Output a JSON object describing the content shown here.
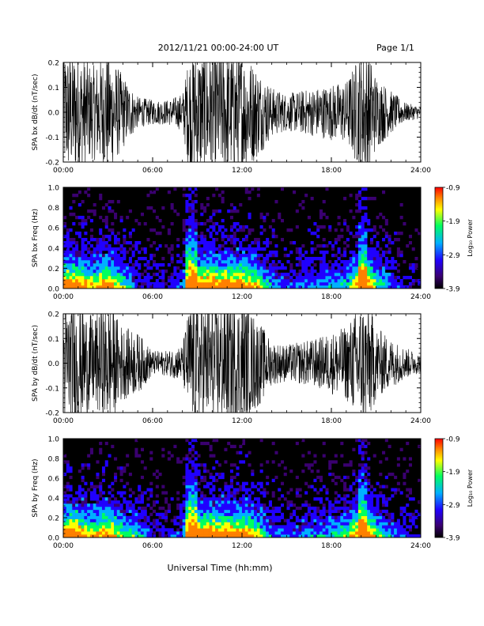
{
  "header": {
    "title": "2012/11/21   00:00-24:00 UT",
    "page": "Page 1/1"
  },
  "xlabel": "Universal Time (hh:mm)",
  "colors": {
    "trace": "#000000",
    "colorbar": [
      "#000000",
      "#3a0070",
      "#2000ff",
      "#00b0ff",
      "#00ff60",
      "#ffff00",
      "#ff8000",
      "#ff0000"
    ]
  },
  "chart_data": [
    {
      "type": "line",
      "ylabel": "SPA bx dB/dt (nT/sec)",
      "ylim": [
        -0.2,
        0.2
      ],
      "yticks": [
        "-0.2",
        "-0.1",
        "0.0",
        "0.1",
        "0.2"
      ],
      "xticks": [
        "00:00",
        "06:00",
        "12:00",
        "18:00",
        "24:00"
      ],
      "xlim_hours": [
        0,
        24
      ],
      "series": [
        {
          "x": [
            0,
            1,
            2,
            3,
            4,
            5,
            6,
            7,
            8,
            8.5,
            9,
            10,
            11,
            12,
            13,
            14,
            15,
            16,
            17,
            18,
            19,
            20,
            20.5,
            21,
            22,
            23,
            24
          ],
          "amplitude": [
            0.2,
            0.2,
            0.15,
            0.2,
            0.12,
            0.05,
            0.04,
            0.04,
            0.06,
            0.2,
            0.2,
            0.2,
            0.2,
            0.2,
            0.15,
            0.08,
            0.06,
            0.07,
            0.08,
            0.09,
            0.1,
            0.2,
            0.2,
            0.12,
            0.07,
            0.03,
            0.02
          ]
        }
      ]
    },
    {
      "type": "heatmap",
      "ylabel": "SPA bx Freq (Hz)",
      "ylim": [
        0.0,
        1.0
      ],
      "yticks": [
        "0.0",
        "0.2",
        "0.4",
        "0.6",
        "0.8",
        "1.0"
      ],
      "xticks": [
        "00:00",
        "06:00",
        "12:00",
        "18:00",
        "24:00"
      ],
      "colorbar": {
        "label": "Log₁₀ Power",
        "ticks": [
          "-0.9",
          "-1.9",
          "-2.9",
          "-3.9"
        ],
        "range": [
          -3.9,
          -0.9
        ]
      }
    },
    {
      "type": "line",
      "ylabel": "SPA by dB/dt (nT/sec)",
      "ylim": [
        -0.2,
        0.2
      ],
      "yticks": [
        "-0.2",
        "-0.1",
        "0.0",
        "0.1",
        "0.2"
      ],
      "xticks": [
        "00:00",
        "06:00",
        "12:00",
        "18:00",
        "24:00"
      ],
      "xlim_hours": [
        0,
        24
      ],
      "series": [
        {
          "x": [
            0,
            1,
            2,
            3,
            4,
            5,
            6,
            7,
            8,
            8.5,
            9,
            10,
            11,
            12,
            13,
            14,
            15,
            16,
            17,
            18,
            19,
            20,
            20.5,
            21,
            22,
            23,
            24
          ],
          "amplitude": [
            0.2,
            0.2,
            0.15,
            0.2,
            0.12,
            0.1,
            0.04,
            0.04,
            0.06,
            0.2,
            0.2,
            0.2,
            0.2,
            0.2,
            0.15,
            0.07,
            0.06,
            0.07,
            0.08,
            0.1,
            0.12,
            0.2,
            0.2,
            0.12,
            0.08,
            0.05,
            0.03
          ]
        }
      ]
    },
    {
      "type": "heatmap",
      "ylabel": "SPA by Freq (Hz)",
      "ylim": [
        0.0,
        1.0
      ],
      "yticks": [
        "0.0",
        "0.2",
        "0.4",
        "0.6",
        "0.8",
        "1.0"
      ],
      "xticks": [
        "00:00",
        "06:00",
        "12:00",
        "18:00",
        "24:00"
      ],
      "colorbar": {
        "label": "Log₁₀ Power",
        "ticks": [
          "-0.9",
          "-1.9",
          "-2.9",
          "-3.9"
        ],
        "range": [
          -3.9,
          -0.9
        ]
      }
    }
  ]
}
